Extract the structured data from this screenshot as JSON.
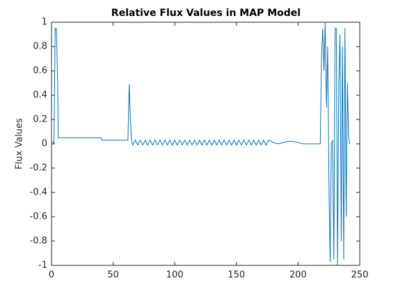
{
  "chart_data": {
    "type": "line",
    "title": "Relative Flux Values in MAP Model",
    "y_label": "Flux Values",
    "xlim": [
      0,
      250
    ],
    "xticks": [
      0,
      50,
      100,
      150,
      200,
      250
    ],
    "ylim": [
      -1,
      1
    ],
    "yticks": [
      -1,
      -0.8,
      -0.6,
      -0.4,
      -0.2,
      0,
      0.2,
      0.4,
      0.6,
      0.8,
      1
    ],
    "series": [
      {
        "color": "#0072bd",
        "x": [
          1,
          2,
          3,
          4,
          5,
          5.5,
          40,
          41,
          62,
          63,
          64,
          65,
          66,
          68,
          70,
          72,
          74,
          76,
          78,
          80,
          82,
          84,
          86,
          88,
          90,
          92,
          94,
          96,
          98,
          100,
          102,
          104,
          106,
          108,
          110,
          112,
          114,
          116,
          118,
          120,
          122,
          124,
          126,
          128,
          130,
          132,
          134,
          136,
          138,
          140,
          142,
          144,
          146,
          148,
          150,
          152,
          154,
          156,
          158,
          160,
          162,
          164,
          166,
          168,
          170,
          172,
          174,
          176,
          180,
          184,
          188,
          192,
          196,
          200,
          204,
          208,
          212,
          216,
          218,
          219,
          220,
          221,
          222,
          223,
          224,
          225,
          226,
          227,
          228,
          229,
          230,
          231,
          232,
          233,
          234,
          235,
          236,
          237,
          238,
          239,
          240,
          241,
          242
        ],
        "values": [
          0.02,
          0,
          0.95,
          0.95,
          0.5,
          0.05,
          0.05,
          0.03,
          0.03,
          0.49,
          0.2,
          0.02,
          -0.01,
          0.03,
          -0.01,
          0.03,
          -0.01,
          0.03,
          -0.01,
          0.03,
          -0.01,
          0.03,
          -0.01,
          0.03,
          -0.01,
          0.03,
          -0.01,
          0.03,
          -0.01,
          0.03,
          -0.01,
          0.03,
          -0.01,
          0.03,
          -0.01,
          0.03,
          -0.01,
          0.03,
          -0.01,
          0.03,
          -0.01,
          0.03,
          -0.01,
          0.03,
          -0.01,
          0.03,
          -0.01,
          0.03,
          -0.01,
          0.03,
          -0.01,
          0.03,
          -0.01,
          0.03,
          -0.01,
          0.03,
          -0.01,
          0.03,
          -0.01,
          0.03,
          -0.01,
          0.03,
          -0.01,
          0.03,
          -0.01,
          0.03,
          -0.01,
          0.03,
          0.01,
          0,
          0.01,
          0.02,
          0.02,
          0.01,
          0,
          0,
          0,
          0,
          0,
          0.72,
          0.95,
          0.6,
          1,
          0.3,
          0.8,
          -0.3,
          -0.97,
          0,
          0.03,
          -0.95,
          0.95,
          0.95,
          -1,
          0.5,
          0.9,
          -0.8,
          0.8,
          -0.95,
          0.95,
          -0.6,
          0.5,
          0.05,
          0
        ]
      }
    ]
  }
}
